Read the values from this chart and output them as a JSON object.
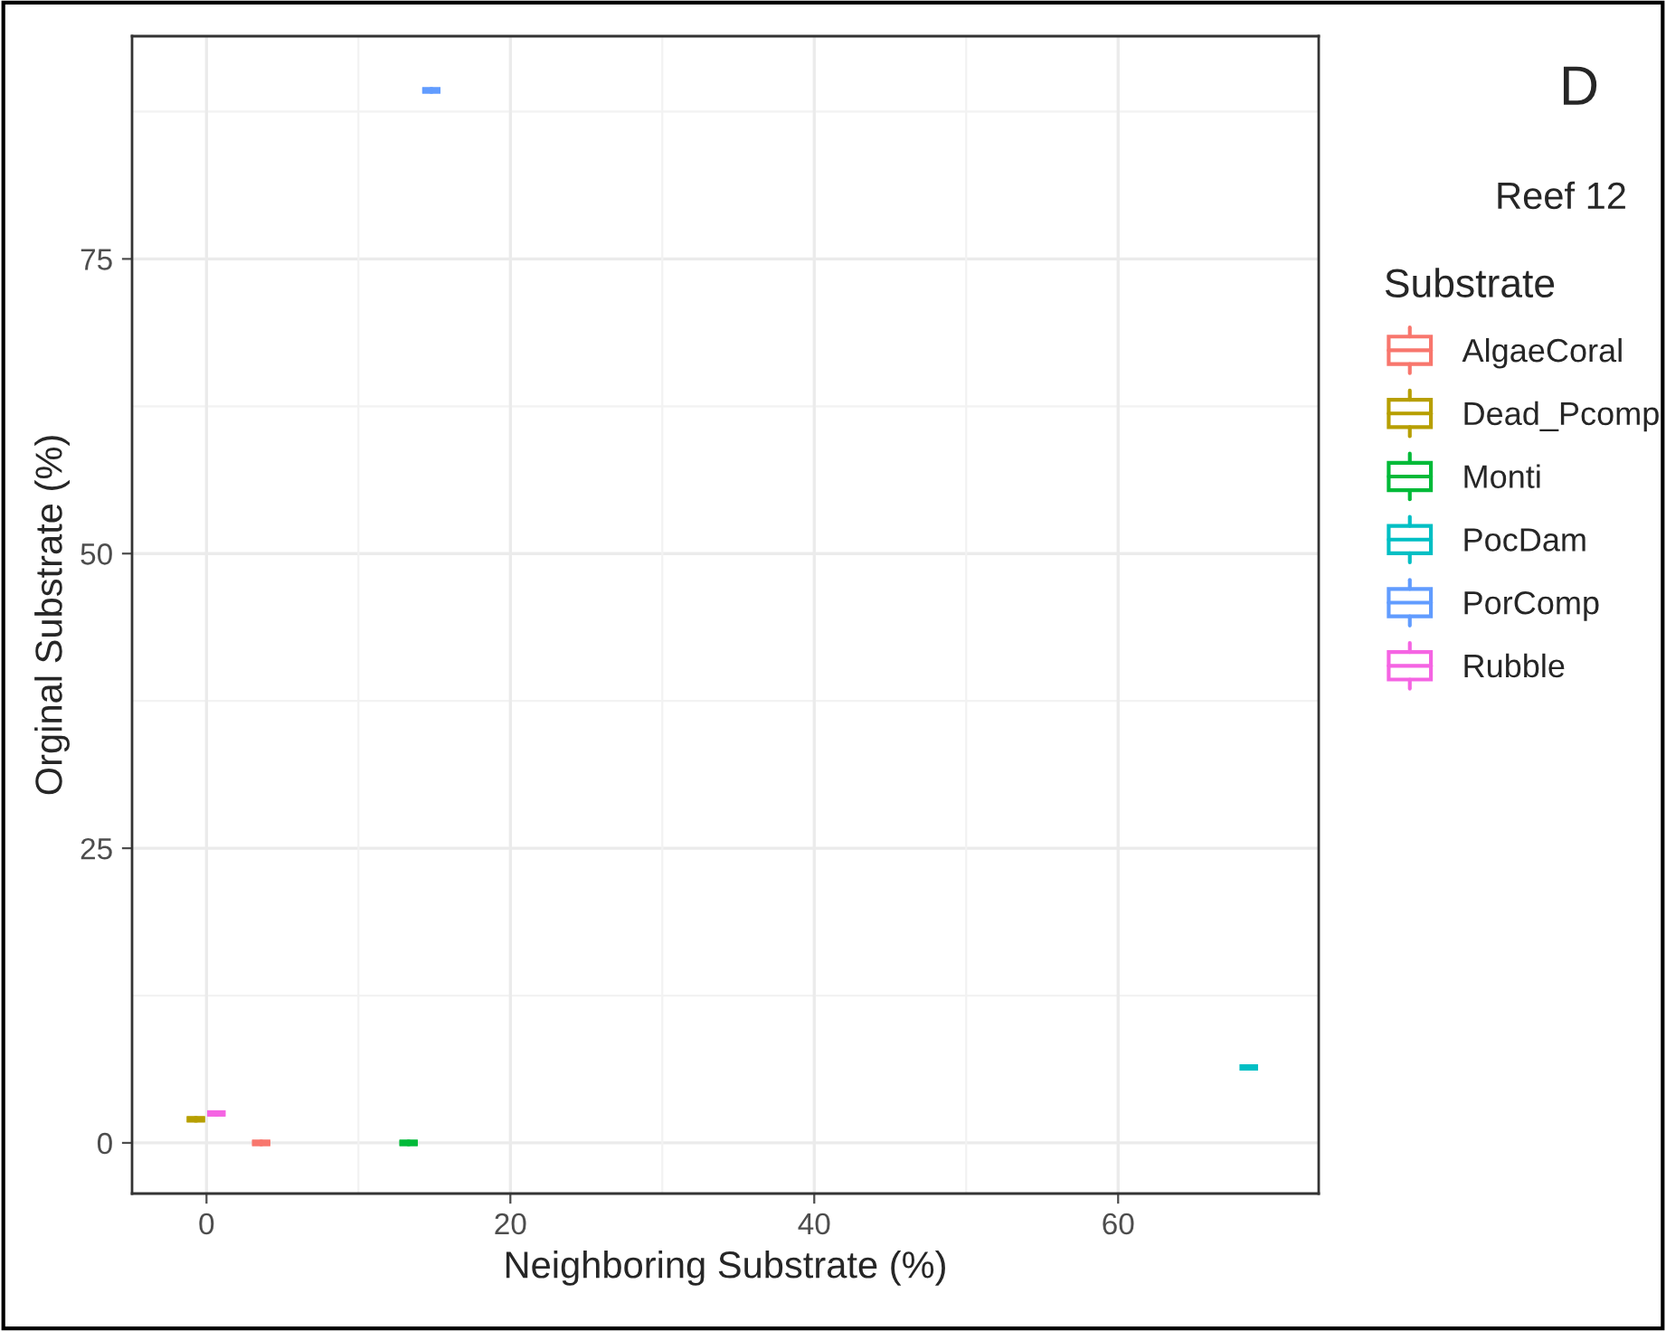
{
  "chart_data": {
    "type": "box",
    "title": "D",
    "subtitle": "Reef 12",
    "xlabel": "Neighboring Substrate (%)",
    "ylabel": "Orginal Substrate (%)",
    "legend_title": "Substrate",
    "legend": "right",
    "grid": true,
    "xlim": [
      -4.9,
      73.2
    ],
    "ylim": [
      -4.3,
      93.9
    ],
    "xticks": [
      0,
      20,
      40,
      60
    ],
    "yticks": [
      0,
      25,
      50,
      75
    ],
    "series": [
      {
        "name": "AlgaeCoral",
        "color": "#f8766d",
        "x": [
          3.6
        ],
        "boxes": [
          {
            "low": 0,
            "q1": 0,
            "median": 0,
            "q3": 0,
            "high": 0
          }
        ]
      },
      {
        "name": "Dead_Pcomp",
        "color": "#b79f00",
        "x": [
          -0.7
        ],
        "boxes": [
          {
            "low": 2.0,
            "q1": 2.0,
            "median": 2.0,
            "q3": 2.0,
            "high": 2.0
          }
        ]
      },
      {
        "name": "Monti",
        "color": "#00ba38",
        "x": [
          13.3
        ],
        "boxes": [
          {
            "low": 0,
            "q1": 0,
            "median": 0,
            "q3": 0,
            "high": 0
          }
        ]
      },
      {
        "name": "PocDam",
        "color": "#00bfc4",
        "x": [
          68.6
        ],
        "boxes": [
          {
            "low": 6.4,
            "q1": 6.4,
            "median": 6.4,
            "q3": 6.4,
            "high": 6.4
          }
        ]
      },
      {
        "name": "PorComp",
        "color": "#619cff",
        "x": [
          14.8
        ],
        "boxes": [
          {
            "low": 89.3,
            "q1": 89.3,
            "median": 89.3,
            "q3": 89.3,
            "high": 89.3
          }
        ]
      },
      {
        "name": "Rubble",
        "color": "#f564e3",
        "x": [
          0.65
        ],
        "boxes": [
          {
            "low": 2.5,
            "q1": 2.5,
            "median": 2.5,
            "q3": 2.5,
            "high": 2.5
          }
        ]
      }
    ]
  }
}
